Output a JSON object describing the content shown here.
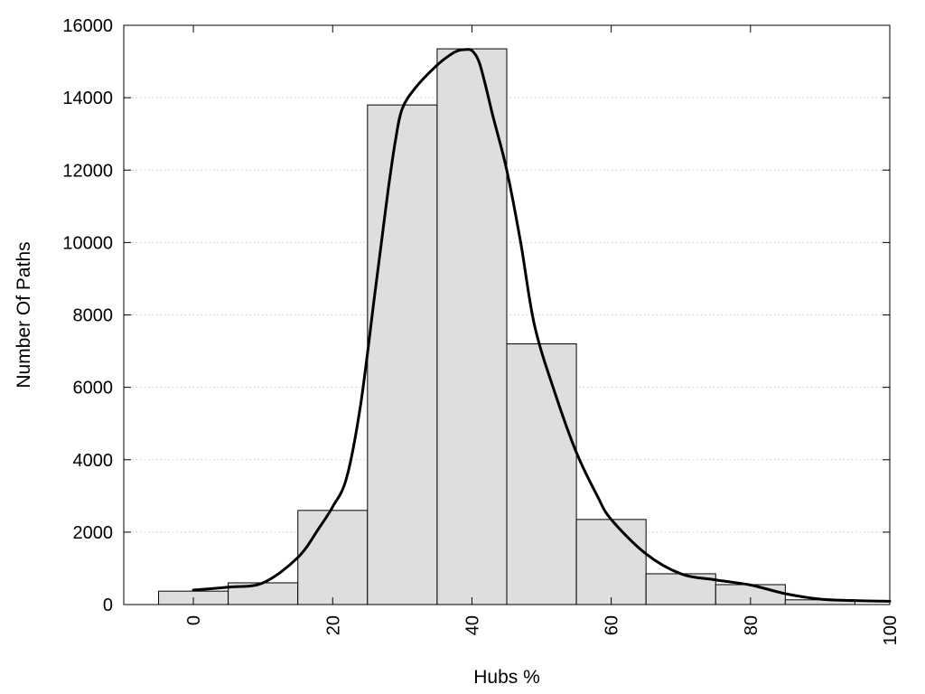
{
  "chart_data": {
    "type": "bar",
    "title": "",
    "xlabel": "Hubs %",
    "ylabel": "Number Of Paths",
    "xlim": [
      -10,
      100
    ],
    "ylim": [
      0,
      16000
    ],
    "xticks": [
      0,
      20,
      40,
      60,
      80,
      100
    ],
    "yticks": [
      0,
      2000,
      4000,
      6000,
      8000,
      10000,
      12000,
      14000,
      16000
    ],
    "grid": "horizontal dotted",
    "bin_width": 10,
    "bars": [
      {
        "x": 0,
        "value": 370
      },
      {
        "x": 10,
        "value": 600
      },
      {
        "x": 20,
        "value": 2600
      },
      {
        "x": 30,
        "value": 13800
      },
      {
        "x": 40,
        "value": 15350
      },
      {
        "x": 50,
        "value": 7200
      },
      {
        "x": 60,
        "value": 2350
      },
      {
        "x": 70,
        "value": 850
      },
      {
        "x": 80,
        "value": 550
      },
      {
        "x": 90,
        "value": 130
      }
    ],
    "curve": {
      "x": [
        0,
        5,
        10,
        15,
        18,
        20,
        22,
        24,
        26,
        27,
        28,
        29,
        30,
        32,
        35,
        37,
        38,
        39,
        40,
        41,
        42,
        43,
        45,
        47,
        49,
        52,
        55,
        58,
        60,
        65,
        70,
        75,
        80,
        85,
        90,
        95,
        100
      ],
      "y": [
        400,
        480,
        600,
        1300,
        2100,
        2700,
        3500,
        5500,
        8500,
        10000,
        11500,
        12800,
        13700,
        14300,
        14900,
        15200,
        15300,
        15330,
        15300,
        15000,
        14300,
        13500,
        12000,
        10000,
        7700,
        5800,
        4200,
        3000,
        2350,
        1400,
        850,
        680,
        540,
        300,
        150,
        110,
        90
      ]
    },
    "colors": {
      "bar_fill": "#dedede",
      "bar_stroke": "#000000",
      "curve": "#000000"
    }
  }
}
